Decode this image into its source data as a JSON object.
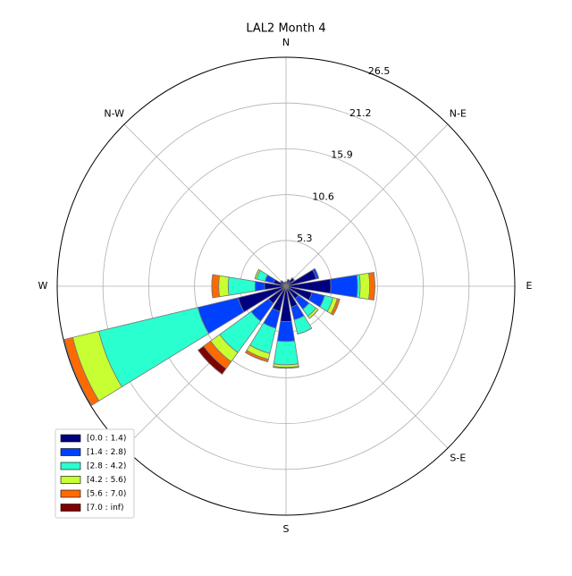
{
  "chart_data": {
    "type": "windrose",
    "title": "LAL2 Month 4",
    "categories": [
      "N",
      null,
      "N-E",
      null,
      "E",
      null,
      "S-E",
      null,
      "S",
      null,
      null,
      null,
      "W",
      null,
      "N-W",
      null
    ],
    "series": [
      {
        "name": "[0.0 : 1.4)",
        "color": "#00007f",
        "values": [
          0.5,
          0.8,
          1.2,
          3.6,
          5.2,
          3.1,
          1.8,
          2.5,
          4.1,
          3.0,
          2.5,
          5.7,
          2.5,
          1.5,
          0.8,
          0.5
        ]
      },
      {
        "name": "[1.4 : 2.8)",
        "color": "#0040ff",
        "values": [
          0,
          0,
          0,
          0.3,
          3.1,
          1.5,
          1.5,
          1.5,
          2.3,
          2.0,
          2.5,
          4.8,
          1.1,
          1.0,
          0,
          0
        ]
      },
      {
        "name": "[2.8 : 4.2)",
        "color": "#2affd0",
        "values": [
          0,
          0,
          0,
          0,
          0.3,
          1.0,
          1.0,
          1.7,
          2.7,
          3.0,
          4.5,
          11.8,
          3.1,
          1.0,
          0,
          0
        ]
      },
      {
        "name": "[4.2 : 5.6)",
        "color": "#c8ff32",
        "values": [
          0,
          0,
          0,
          0,
          1.1,
          0.5,
          0.3,
          0,
          0.3,
          0.7,
          1.3,
          3.1,
          1.1,
          0.2,
          0,
          0
        ]
      },
      {
        "name": "[5.6 : 7.0)",
        "color": "#ff6a00",
        "values": [
          0,
          0,
          0,
          0,
          0.6,
          0.3,
          0,
          0,
          0.1,
          0.3,
          1.0,
          1.0,
          0.8,
          0,
          0,
          0
        ]
      },
      {
        "name": "[7.0 : inf)",
        "color": "#7f0000",
        "values": [
          0,
          0,
          0,
          0,
          0,
          0,
          0,
          0,
          0,
          0,
          0.8,
          0,
          0,
          0,
          0,
          0
        ]
      }
    ],
    "ylim": [
      0,
      26.5
    ],
    "yticks": [
      5.3,
      10.6,
      15.9,
      21.2,
      26.5
    ],
    "grid": true,
    "legend": "lower left"
  }
}
